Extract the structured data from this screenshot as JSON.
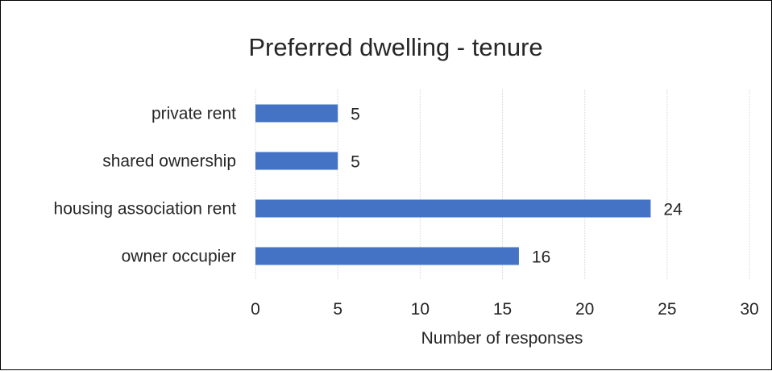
{
  "chart_data": {
    "type": "bar",
    "orientation": "horizontal",
    "title": "Preferred dwelling - tenure",
    "categories": [
      "private rent",
      "shared ownership",
      "housing association rent",
      "owner occupier"
    ],
    "values": [
      5,
      5,
      24,
      16
    ],
    "xlabel": "Number of responses",
    "ylabel": "",
    "xlim": [
      0,
      30
    ],
    "ticks": [
      0,
      5,
      10,
      15,
      20,
      25,
      30
    ],
    "grid": true,
    "legend": "none",
    "bar_color": "#4472C4"
  }
}
